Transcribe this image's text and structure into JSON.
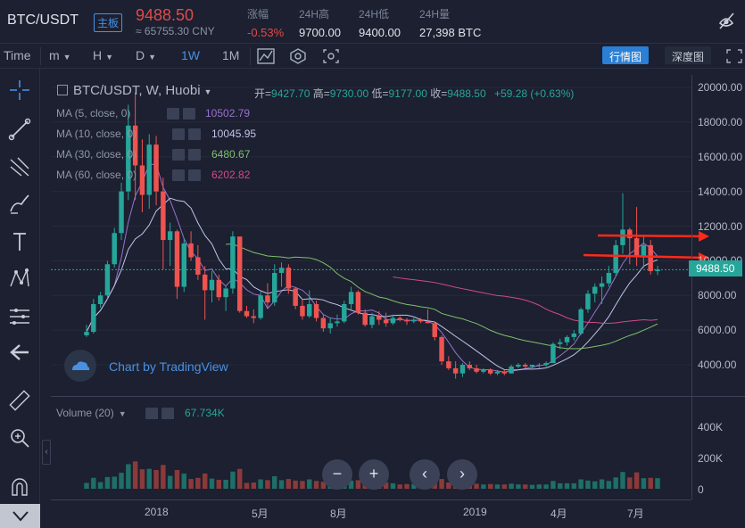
{
  "header": {
    "pair": "BTC/USDT",
    "board_badge": "主板",
    "price": "9488.50",
    "price_cny": "≈ 65755.30 CNY",
    "stats": [
      {
        "label": "涨幅",
        "value": "-0.53%",
        "color": "#e04a4a"
      },
      {
        "label": "24H高",
        "value": "9700.00"
      },
      {
        "label": "24H低",
        "value": "9400.00"
      },
      {
        "label": "24H量",
        "value": "27,398 BTC"
      }
    ],
    "right_icon": "no-sign-icon"
  },
  "toolbar": {
    "time_label": "Time",
    "intervals": [
      {
        "label": "m",
        "dropdown": true
      },
      {
        "label": "H",
        "dropdown": true
      },
      {
        "label": "D",
        "dropdown": true
      },
      {
        "label": "1W",
        "active": true
      },
      {
        "label": "1M"
      }
    ],
    "icons": [
      "indicator-icon",
      "settings-icon",
      "screenshot-icon"
    ],
    "view_primary": "行情图",
    "view_secondary": "深度图",
    "fullscreen_icon": "fullscreen-icon"
  },
  "left_tools": [
    "crosshair-icon",
    "trend-line-icon",
    "fib-icon",
    "brush-icon",
    "text-icon",
    "pattern-icon",
    "measure-icon",
    "back-arrow-icon",
    "ruler-icon",
    "zoom-icon",
    "magnet-icon",
    "chevron-down-icon"
  ],
  "legend": {
    "title": "BTC/USDT, W, Huobi",
    "ohlc": {
      "open_label": "开=",
      "open": "9427.70",
      "high_label": "高=",
      "high": "9730.00",
      "low_label": "低=",
      "low": "9177.00",
      "close_label": "收=",
      "close": "9488.50",
      "change": "+59.28 (+0.63%)"
    },
    "ma": [
      {
        "label": "MA (5, close, 0)",
        "value": "10502.79",
        "color": "#9b6fd0"
      },
      {
        "label": "MA (10, close, 0)",
        "value": "10045.95",
        "color": "#c0c4e8"
      },
      {
        "label": "MA (30, close, 0)",
        "value": "6480.67",
        "color": "#7fc06a"
      },
      {
        "label": "MA (60, close, 0)",
        "value": "6202.82",
        "color": "#d04a8a"
      }
    ]
  },
  "watermark": "Chart by TradingView",
  "volume": {
    "label": "Volume (20)",
    "value": "67.734K"
  },
  "axis": {
    "price_ticks": [
      "20000.00",
      "18000.00",
      "16000.00",
      "14000.00",
      "12000.00",
      "10000.00",
      "8000.00",
      "6000.00",
      "4000.00"
    ],
    "current_price": "9488.50",
    "volume_ticks": [
      "400K",
      "200K",
      "0"
    ],
    "time_ticks": [
      "2018",
      "5月",
      "8月",
      "2019",
      "4月",
      "7月"
    ]
  },
  "nav_buttons": [
    "−",
    "+",
    "‹",
    "›"
  ],
  "colors": {
    "up": "#26a69a",
    "down": "#ef5350",
    "background": "#1c2030",
    "arrow": "#ff2a1a"
  },
  "chart_data": {
    "type": "candlestick",
    "title": "BTC/USDT, W, Huobi",
    "ylim": [
      3000,
      20500
    ],
    "candles_ohlc": [
      [
        5700,
        6300,
        5600,
        5900
      ],
      [
        5900,
        7800,
        5800,
        7500
      ],
      [
        7500,
        8200,
        7300,
        8000
      ],
      [
        8000,
        10000,
        7800,
        9800
      ],
      [
        9800,
        11900,
        9600,
        11600
      ],
      [
        11600,
        14500,
        11200,
        14000
      ],
      [
        14000,
        19000,
        13500,
        17800
      ],
      [
        17800,
        19700,
        13500,
        15500
      ],
      [
        15500,
        17000,
        12800,
        13800
      ],
      [
        13800,
        17300,
        13000,
        16700
      ],
      [
        16700,
        17200,
        13200,
        14000
      ],
      [
        14000,
        14800,
        9500,
        11200
      ],
      [
        11200,
        12200,
        9700,
        11700
      ],
      [
        11700,
        11800,
        7800,
        8500
      ],
      [
        8500,
        11300,
        8200,
        11000
      ],
      [
        11000,
        11700,
        10000,
        10200
      ],
      [
        10200,
        10900,
        8900,
        9200
      ],
      [
        9200,
        9700,
        6600,
        8300
      ],
      [
        8300,
        9400,
        7600,
        8900
      ],
      [
        8900,
        9200,
        7700,
        7900
      ],
      [
        7900,
        8600,
        7100,
        8400
      ],
      [
        8400,
        11700,
        8100,
        11400
      ],
      [
        11400,
        11300,
        7000,
        7100
      ],
      [
        7100,
        7400,
        6700,
        6800
      ],
      [
        6800,
        7200,
        6400,
        6700
      ],
      [
        6700,
        8200,
        6600,
        8000
      ],
      [
        8000,
        8700,
        7300,
        7600
      ],
      [
        7600,
        9800,
        7400,
        9300
      ],
      [
        9300,
        9900,
        8500,
        9600
      ],
      [
        9600,
        9800,
        8100,
        8400
      ],
      [
        8400,
        8500,
        7200,
        7400
      ],
      [
        7400,
        7800,
        6600,
        6800
      ],
      [
        6800,
        8300,
        6700,
        7500
      ],
      [
        7500,
        7700,
        6500,
        6700
      ],
      [
        6700,
        6900,
        5900,
        6100
      ],
      [
        6100,
        6700,
        5800,
        6400
      ],
      [
        6400,
        6900,
        6200,
        6500
      ],
      [
        6500,
        7700,
        6400,
        7500
      ],
      [
        7500,
        8500,
        7200,
        8200
      ],
      [
        8200,
        8300,
        6900,
        7000
      ],
      [
        7000,
        7200,
        6200,
        6300
      ],
      [
        6300,
        7000,
        6100,
        6800
      ],
      [
        6800,
        7100,
        6300,
        6600
      ],
      [
        6600,
        7000,
        6200,
        6400
      ],
      [
        6400,
        6900,
        6300,
        6700
      ],
      [
        6700,
        6800,
        6500,
        6600
      ],
      [
        6600,
        6700,
        6300,
        6500
      ],
      [
        6500,
        6800,
        6400,
        6600
      ],
      [
        6600,
        6700,
        6400,
        6500
      ],
      [
        6500,
        7200,
        6400,
        6400
      ],
      [
        6400,
        6500,
        5400,
        5600
      ],
      [
        5600,
        5700,
        4000,
        4200
      ],
      [
        4200,
        4500,
        3700,
        3800
      ],
      [
        3800,
        4200,
        3200,
        3500
      ],
      [
        3500,
        4100,
        3300,
        4000
      ],
      [
        4000,
        4200,
        3700,
        3800
      ],
      [
        3800,
        4000,
        3500,
        3600
      ],
      [
        3600,
        3800,
        3500,
        3700
      ],
      [
        3700,
        3800,
        3400,
        3500
      ],
      [
        3500,
        3700,
        3400,
        3600
      ],
      [
        3600,
        3700,
        3400,
        3500
      ],
      [
        3500,
        4000,
        3500,
        3900
      ],
      [
        3900,
        4100,
        3800,
        4000
      ],
      [
        4000,
        4100,
        3800,
        3900
      ],
      [
        3900,
        4000,
        3800,
        4000
      ],
      [
        4000,
        4100,
        3800,
        4000
      ],
      [
        4000,
        4200,
        3900,
        4100
      ],
      [
        4100,
        5300,
        4100,
        5200
      ],
      [
        5200,
        5500,
        4900,
        5300
      ],
      [
        5300,
        5700,
        5100,
        5600
      ],
      [
        5600,
        6000,
        5400,
        5800
      ],
      [
        5800,
        7300,
        5700,
        7200
      ],
      [
        7200,
        8300,
        7000,
        8100
      ],
      [
        8100,
        8700,
        7600,
        8500
      ],
      [
        8500,
        9100,
        7500,
        8700
      ],
      [
        8700,
        9700,
        8500,
        9300
      ],
      [
        9300,
        11200,
        9100,
        10900
      ],
      [
        10900,
        13900,
        10400,
        11800
      ],
      [
        11800,
        11900,
        9800,
        11300
      ],
      [
        11300,
        13100,
        9700,
        10200
      ],
      [
        10200,
        11500,
        9600,
        10900
      ],
      [
        10900,
        11200,
        9200,
        9400
      ],
      [
        9400,
        9700,
        9180,
        9490
      ]
    ],
    "volume_note": "Weekly volume bars (0–500K scale) colored by candle direction; volume read from chart: 67.734K for the latest bar",
    "ma_series": {
      "MA5": 10502.79,
      "MA10": 10045.95,
      "MA30": 6480.67,
      "MA60": 6202.82
    }
  }
}
